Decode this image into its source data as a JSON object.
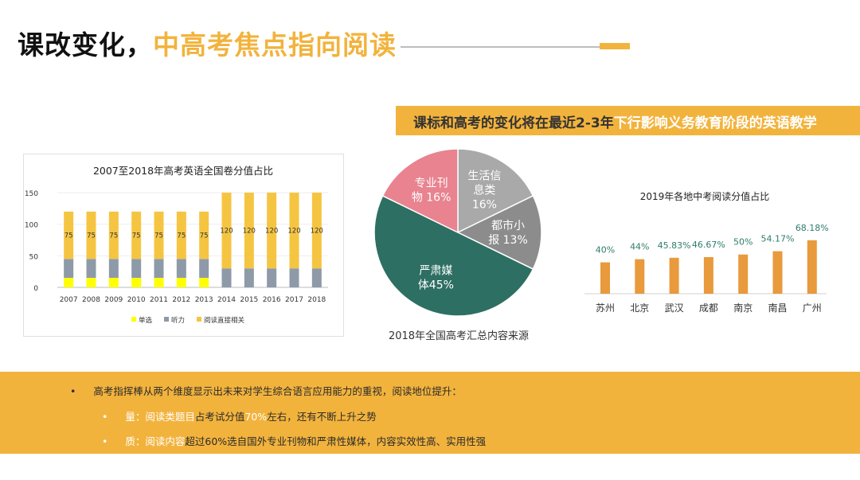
{
  "title": {
    "part1": "课改变化，",
    "part2": "中高考焦点指向阅读"
  },
  "banner": {
    "part1": "课标和高考的变化将在最近2-3年",
    "part2": "下行影响义务教育阶段的英语教学"
  },
  "bottom": {
    "bullet1": {
      "marker": "•",
      "text": "高考指挥棒从两个维度显示出未来对学生综合语言应用能力的重视，阅读地位提升："
    },
    "bullet2": {
      "marker": "•",
      "a": "量：阅读类题目",
      "b": "占考试分值",
      "c": "70%",
      "d": "左右，还有不断上升之势"
    },
    "bullet3": {
      "marker": "•",
      "a": "质：阅读内容",
      "b": "超过60%选自国外专业刊物和严肃性媒体，内容实效性高、实用性强"
    }
  },
  "colors": {
    "accent": "#f2b33d",
    "gray": "#8e8e8e",
    "teal": "#2e6f63",
    "pink": "#e8838f",
    "orange": "#e89a3c"
  },
  "chart_data": [
    {
      "type": "bar",
      "stacked": true,
      "title": "2007至2018年高考英语全国卷分值占比",
      "categories": [
        "2007",
        "2008",
        "2009",
        "2010",
        "2011",
        "2012",
        "2013",
        "2014",
        "2015",
        "2016",
        "2017",
        "2018"
      ],
      "ylim": [
        0,
        150
      ],
      "yticks": [
        "0",
        "50",
        "100",
        "150"
      ],
      "series": [
        {
          "name": "单选",
          "color": "#ffff00",
          "values": [
            15,
            15,
            15,
            15,
            15,
            15,
            15,
            0,
            0,
            0,
            0,
            0
          ]
        },
        {
          "name": "听力",
          "color": "#8e9aa8",
          "values": [
            30,
            30,
            30,
            30,
            30,
            30,
            30,
            30,
            30,
            30,
            30,
            30
          ]
        },
        {
          "name": "阅读直接相关",
          "color": "#f5c542",
          "values": [
            75,
            75,
            75,
            75,
            75,
            75,
            75,
            120,
            120,
            120,
            120,
            120
          ]
        }
      ],
      "labels": [
        "75",
        "75",
        "75",
        "75",
        "75",
        "75",
        "75",
        "120",
        "120",
        "120",
        "120",
        "120"
      ],
      "legend_position": "bottom"
    },
    {
      "type": "pie",
      "caption": "2018年全国高考汇总内容来源",
      "slices": [
        {
          "label": "生活信息类16%",
          "lines": [
            "生活信",
            "息类",
            "16%"
          ],
          "value": 16,
          "color": "#a9a9a9"
        },
        {
          "label": "都市小报13%",
          "lines": [
            "都市小",
            "报 13%"
          ],
          "value": 13,
          "color": "#8c8c8c"
        },
        {
          "label": "严肃媒体45%",
          "lines": [
            "严肃媒",
            "体45%"
          ],
          "value": 45,
          "color": "#2e6f63"
        },
        {
          "label": "专业刊物16%",
          "lines": [
            "专业刊",
            "物 16%"
          ],
          "value": 16,
          "color": "#e8838f"
        }
      ]
    },
    {
      "type": "bar",
      "title": "2019年各地中考阅读分值占比",
      "categories": [
        "苏州",
        "北京",
        "武汉",
        "成都",
        "南京",
        "南昌",
        "广州"
      ],
      "values": [
        40,
        44,
        45.83,
        46.67,
        50,
        54.17,
        68.18
      ],
      "labels": [
        "40%",
        "44%",
        "45.83%",
        "46.67%",
        "50%",
        "54.17%",
        "68.18%"
      ],
      "color": "#e89a3c"
    }
  ]
}
